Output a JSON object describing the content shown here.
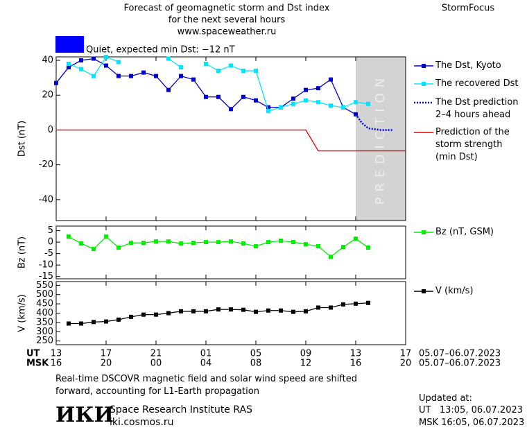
{
  "header": {
    "title": [
      "Forecast of geomagnetic storm and Dst index",
      "for the next several hours",
      "www.spaceweather.ru"
    ],
    "brand": "StormFocus"
  },
  "status": {
    "label": "Quiet, expected min Dst: −12 nT",
    "color": "#0000ff"
  },
  "chart_data": [
    {
      "type": "line",
      "ylabel": "Dst (nT)",
      "xlim": [
        0,
        28
      ],
      "ylim": [
        -52,
        42
      ],
      "yticks": [
        40,
        20,
        0,
        -20,
        -40
      ],
      "shade": {
        "xlim": [
          24,
          28
        ],
        "label": "PREDICTION",
        "color": "#d3d3d3"
      },
      "series": [
        {
          "name": "The Dst, Kyoto",
          "color": "#0000cc",
          "marker": "square",
          "x": [
            0,
            1,
            2,
            3,
            4,
            5,
            6,
            7,
            8,
            9,
            10,
            11,
            12,
            13,
            14,
            15,
            16,
            17,
            18,
            19,
            20,
            21,
            22,
            23,
            24
          ],
          "values": [
            27,
            36,
            40,
            41,
            37,
            31,
            31,
            33,
            31,
            23,
            31,
            29,
            19,
            19,
            12,
            19,
            17,
            13,
            13,
            18,
            23,
            24,
            29,
            13,
            9
          ]
        },
        {
          "name": "The recovered Dst",
          "color": "#00e5ff",
          "marker": "square",
          "x": [
            1,
            2,
            3,
            4,
            5,
            6,
            7,
            8,
            9,
            10,
            11,
            12,
            13,
            14,
            15,
            16,
            17,
            18,
            19,
            20,
            21,
            22,
            23,
            24,
            25
          ],
          "values": [
            38,
            35,
            31,
            42,
            39,
            null,
            null,
            null,
            41,
            36,
            null,
            38,
            34,
            37,
            34,
            34,
            11,
            13,
            15,
            17,
            16,
            14,
            13,
            16,
            15
          ]
        },
        {
          "name": "The Dst prediction\n2–4 hours ahead",
          "color": "#0000cc",
          "dash": "dotted",
          "x": [
            24,
            24.5,
            25,
            26,
            27
          ],
          "values": [
            9,
            4,
            1,
            0,
            0
          ]
        },
        {
          "name": "Prediction of the\nstorm strength\n(min Dst)",
          "color": "#e00000",
          "x": [
            0,
            20,
            21,
            28
          ],
          "values": [
            0,
            0,
            -12,
            -12
          ]
        }
      ]
    },
    {
      "type": "line",
      "ylabel": "Bz (nT)",
      "xlim": [
        0,
        28
      ],
      "ylim": [
        -16,
        7
      ],
      "yticks": [
        5,
        0,
        -5,
        -10,
        -15
      ],
      "x": [
        1,
        2,
        3,
        4,
        5,
        6,
        7,
        8,
        9,
        10,
        11,
        12,
        13,
        14,
        15,
        16,
        17,
        18,
        19,
        20,
        21,
        22,
        23,
        24,
        25
      ],
      "series": [
        {
          "name": "Bz (nT, GSM)",
          "color": "#00ee00",
          "marker": "square",
          "values": [
            2.4,
            -0.6,
            -3.0,
            2.4,
            -2.4,
            -0.3,
            -0.3,
            0.3,
            0.3,
            -0.6,
            -0.3,
            0,
            0,
            0.3,
            -0.6,
            -1.8,
            0,
            0.6,
            0,
            -0.9,
            -1.8,
            -6.4,
            -2.1,
            1.5,
            -2.4
          ]
        }
      ]
    },
    {
      "type": "line",
      "ylabel": "V (km/s)",
      "xlim": [
        0,
        28
      ],
      "ylim": [
        230,
        570
      ],
      "yticks": [
        550,
        500,
        450,
        400,
        350,
        300,
        250
      ],
      "x": [
        1,
        2,
        3,
        4,
        5,
        6,
        7,
        8,
        9,
        10,
        11,
        12,
        13,
        14,
        15,
        16,
        17,
        18,
        19,
        20,
        21,
        22,
        23,
        24,
        25
      ],
      "series": [
        {
          "name": "V (km/s)",
          "color": "#000000",
          "marker": "square",
          "values": [
            344,
            344,
            352,
            355,
            365,
            380,
            392,
            392,
            400,
            410,
            410,
            410,
            420,
            420,
            418,
            407,
            414,
            414,
            407,
            410,
            430,
            430,
            447,
            451,
            455
          ]
        }
      ],
      "xlabel": "UT",
      "x2label": "MSK",
      "xticks": [
        {
          "value": 0,
          "label": "13"
        },
        {
          "value": 4,
          "label": "17"
        },
        {
          "value": 8,
          "label": "21"
        },
        {
          "value": 12,
          "label": "01"
        },
        {
          "value": 16,
          "label": "05"
        },
        {
          "value": 20,
          "label": "09"
        },
        {
          "value": 24,
          "label": "13"
        },
        {
          "value": 28,
          "label": "17"
        }
      ],
      "x2ticks": [
        {
          "value": 0,
          "label": "16"
        },
        {
          "value": 4,
          "label": "20"
        },
        {
          "value": 8,
          "label": "00"
        },
        {
          "value": 12,
          "label": "04"
        },
        {
          "value": 16,
          "label": "08"
        },
        {
          "value": 20,
          "label": "12"
        },
        {
          "value": 24,
          "label": "16"
        },
        {
          "value": 28,
          "label": "20"
        }
      ],
      "xdate": "05.07–06.07.2023",
      "x2date": "05.07–06.07.2023"
    }
  ],
  "footer": {
    "note": "Real-time DSCOVR magnetic field and solar wind speed are shifted\nforward, accounting for L1-Earth propagation",
    "logo": "ИКИ",
    "institute": "Space Research Institute RAS",
    "site": "iki.cosmos.ru",
    "updated": "Updated at:",
    "updated_ut": "UT   13:05, 06.07.2023",
    "updated_msk": "MSK 16:05, 06.07.2023"
  }
}
